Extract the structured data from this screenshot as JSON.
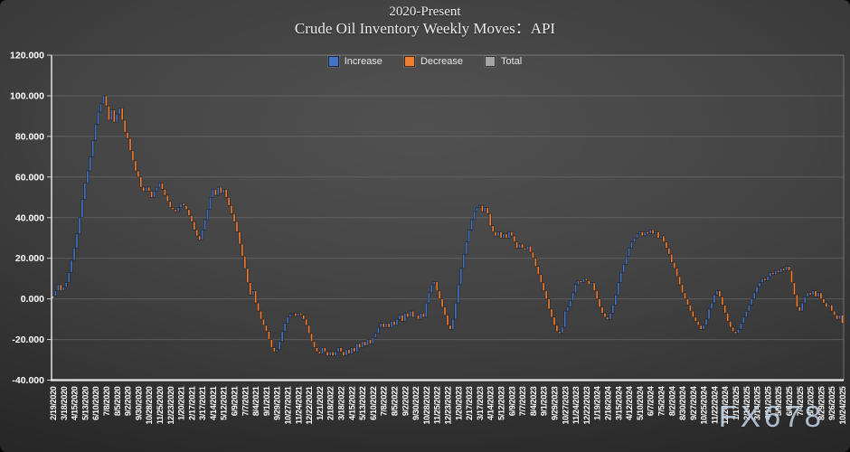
{
  "title": {
    "line1": "2020-Present",
    "line2": "Crude Oil Inventory Weekly Moves：API"
  },
  "legend": [
    {
      "label": "Increase",
      "color": "#4472c4"
    },
    {
      "label": "Decrease",
      "color": "#ed7d31"
    },
    {
      "label": "Total",
      "color": "#a5a5a5"
    }
  ],
  "watermark": "FX678",
  "colors": {
    "background_center": "#4d4d4d",
    "background_edge": "#161616",
    "gridline": "#7a7a7a",
    "axis_line": "#e8e8e8",
    "plot_border": "#8a8a8a",
    "tick_label": "#ffffff",
    "bar_increase": "#4472c4",
    "bar_decrease": "#ed7d31",
    "bar_total": "#a5a5a5",
    "bar_outline": "#141414",
    "watermark_color": "#c4d6e9"
  },
  "chart_data": {
    "type": "bar",
    "subtype": "waterfall",
    "title": "2020-Present Crude Oil Inventory Weekly Moves：API",
    "xlabel": "",
    "ylabel": "",
    "ylim": [
      -40,
      120
    ],
    "ytick_interval": 20,
    "ytick_labels": [
      "120.000",
      "100.000",
      "80.000",
      "60.000",
      "40.000",
      "20.000",
      "0.000",
      "-20.000",
      "-40.000"
    ],
    "grid": true,
    "legend_position": "top-center",
    "legend_entries": [
      "Increase",
      "Decrease",
      "Total"
    ],
    "weeks_per_tick": 4,
    "x_tick_dates": [
      "2/19/2020",
      "3/18/2020",
      "4/15/2020",
      "5/13/2020",
      "6/10/2020",
      "7/8/2020",
      "8/5/2020",
      "9/2/2020",
      "9/30/2020",
      "10/28/2020",
      "11/25/2020",
      "12/23/2020",
      "1/20/2021",
      "2/17/2021",
      "3/17/2021",
      "4/14/2021",
      "5/12/2021",
      "6/9/2021",
      "7/7/2021",
      "8/4/2021",
      "9/1/2021",
      "9/29/2021",
      "10/27/2021",
      "11/24/2021",
      "12/22/2021",
      "1/21/2022",
      "2/18/2022",
      "3/18/2022",
      "4/15/2022",
      "5/13/2022",
      "6/10/2022",
      "7/8/2022",
      "8/5/2022",
      "9/2/2022",
      "9/30/2022",
      "10/28/2022",
      "11/25/2022",
      "12/23/2022",
      "1/20/2023",
      "2/17/2023",
      "3/17/2023",
      "4/14/2023",
      "5/12/2023",
      "6/9/2023",
      "7/7/2023",
      "8/4/2023",
      "9/1/2023",
      "9/29/2023",
      "10/27/2023",
      "11/24/2023",
      "12/22/2023",
      "1/19/2024",
      "2/16/2024",
      "3/15/2024",
      "4/12/2024",
      "5/10/2024",
      "6/7/2024",
      "7/5/2024",
      "8/2/2024",
      "8/30/2024",
      "9/27/2024",
      "10/25/2024",
      "11/22/2024",
      "12/20/2024",
      "1/17/2025",
      "2/14/2025",
      "3/14/2025",
      "4/11/2025",
      "5/9/2025",
      "6/6/2025",
      "7/4/2025",
      "8/1/2025",
      "8/29/2025",
      "9/26/2025",
      "10/24/2025"
    ],
    "weekly_cumulative_totals": [
      1.5,
      4,
      7,
      4,
      6,
      8,
      13,
      19,
      25,
      32,
      40,
      49,
      57,
      63,
      70,
      78,
      86,
      92,
      96,
      100,
      95,
      88,
      93,
      87,
      91,
      94,
      88,
      82,
      79,
      73,
      68,
      63,
      60,
      55,
      53,
      55,
      53,
      50,
      53,
      55,
      57,
      54,
      51,
      48,
      45,
      44,
      43,
      45,
      47,
      46,
      44,
      41,
      38,
      34,
      31,
      29,
      34,
      39,
      44,
      50,
      54,
      51,
      55,
      52,
      54,
      50,
      46,
      42,
      38,
      33,
      27,
      21,
      15,
      8,
      2,
      4,
      -2,
      -6,
      -10,
      -13,
      -16,
      -20,
      -24,
      -26,
      -25,
      -21,
      -16,
      -12,
      -9,
      -7.5,
      -7,
      -8.5,
      -7,
      -8,
      -10,
      -13,
      -17,
      -21,
      -24,
      -26,
      -27,
      -24,
      -26,
      -28,
      -26,
      -28,
      -26,
      -24,
      -26,
      -28,
      -25,
      -27,
      -24,
      -26,
      -22,
      -24,
      -21,
      -23,
      -20,
      -22,
      -19,
      -17,
      -14,
      -12,
      -14,
      -12,
      -14,
      -11,
      -13,
      -10,
      -8,
      -11,
      -7,
      -9,
      -6,
      -9,
      -8,
      -10,
      -7,
      -9,
      -2,
      3,
      7,
      8.5,
      4,
      0,
      -4,
      -8,
      -13,
      -15,
      -10,
      -2,
      7,
      15,
      22,
      28,
      34,
      39,
      43,
      45,
      46,
      43,
      45,
      42,
      36,
      33,
      31,
      33,
      30,
      32,
      30,
      33,
      31,
      28,
      25,
      27,
      25,
      24,
      26,
      23,
      20,
      16,
      12,
      8,
      4,
      0,
      -5,
      -9,
      -13,
      -16,
      -17,
      -14,
      -6,
      -4,
      -1,
      3,
      7,
      9,
      8,
      10,
      9,
      7,
      8,
      4,
      0,
      -4,
      -7,
      -9,
      -10,
      -7,
      -3,
      2,
      8,
      13,
      17,
      21,
      25,
      28,
      30,
      32,
      33,
      31,
      33,
      32,
      34,
      32,
      33,
      30,
      31,
      28,
      25,
      22,
      18,
      15,
      11,
      7,
      3,
      0,
      -3,
      -6,
      -9,
      -11,
      -13,
      -15,
      -13,
      -10,
      -5,
      -2,
      2,
      4,
      1,
      -3,
      -7,
      -11,
      -14,
      -16,
      -17,
      -15,
      -12,
      -9,
      -6,
      -3,
      0,
      3,
      6,
      8,
      10,
      9,
      11,
      13,
      12,
      14,
      13,
      15,
      14,
      16,
      14,
      8,
      2,
      -4,
      -6,
      -2,
      1,
      3,
      2,
      4,
      1,
      3,
      0,
      -2,
      -4,
      -3,
      -6,
      -8,
      -10,
      -8,
      -12
    ]
  }
}
